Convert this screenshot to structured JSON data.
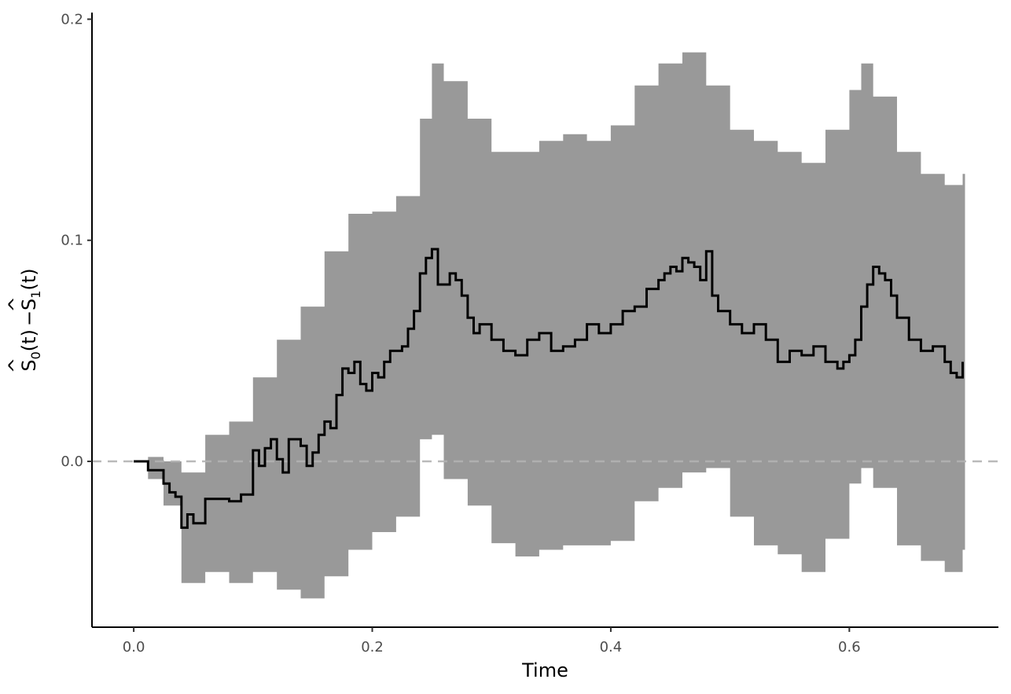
{
  "chart_data": {
    "type": "area",
    "title": "",
    "xlabel": "Time",
    "ylabel": {
      "base": "S",
      "hat": "^",
      "sub0": "0",
      "sub1": "1",
      "t": "(t)",
      "minus": "−"
    },
    "xlim": [
      -0.035,
      0.725
    ],
    "ylim": [
      -0.075,
      0.203
    ],
    "x_ticks": [
      0.0,
      0.2,
      0.4,
      0.6
    ],
    "x_tick_labels": [
      "0.0",
      "0.2",
      "0.4",
      "0.6"
    ],
    "y_ticks": [
      0.0,
      0.1,
      0.2
    ],
    "y_tick_labels": [
      "0.0",
      "0.1",
      "0.2"
    ],
    "reference_line": {
      "y": 0,
      "style": "dashed",
      "color": "#b3b3b3"
    },
    "grid": false,
    "legend": "none",
    "colors": {
      "band": "#999999",
      "line": "#000000",
      "axis": "#000000"
    },
    "series": [
      {
        "role": "confidence band",
        "x": [
          0.0,
          0.012,
          0.025,
          0.04,
          0.06,
          0.08,
          0.1,
          0.12,
          0.14,
          0.16,
          0.18,
          0.2,
          0.22,
          0.24,
          0.25,
          0.26,
          0.28,
          0.3,
          0.32,
          0.34,
          0.36,
          0.38,
          0.4,
          0.42,
          0.44,
          0.46,
          0.48,
          0.5,
          0.52,
          0.54,
          0.56,
          0.58,
          0.6,
          0.61,
          0.62,
          0.64,
          0.66,
          0.68,
          0.695
        ],
        "upper": [
          0.0,
          0.002,
          0.0,
          -0.005,
          0.012,
          0.018,
          0.038,
          0.055,
          0.07,
          0.095,
          0.112,
          0.113,
          0.12,
          0.155,
          0.18,
          0.172,
          0.155,
          0.14,
          0.14,
          0.145,
          0.148,
          0.145,
          0.152,
          0.17,
          0.18,
          0.185,
          0.17,
          0.15,
          0.145,
          0.14,
          0.135,
          0.15,
          0.168,
          0.18,
          0.165,
          0.14,
          0.13,
          0.125,
          0.13
        ],
        "lower": [
          0.0,
          -0.008,
          -0.02,
          -0.055,
          -0.05,
          -0.055,
          -0.05,
          -0.058,
          -0.062,
          -0.052,
          -0.04,
          -0.032,
          -0.025,
          0.01,
          0.012,
          -0.008,
          -0.02,
          -0.037,
          -0.043,
          -0.04,
          -0.038,
          -0.038,
          -0.036,
          -0.018,
          -0.012,
          -0.005,
          -0.003,
          -0.025,
          -0.038,
          -0.042,
          -0.05,
          -0.035,
          -0.01,
          -0.003,
          -0.012,
          -0.038,
          -0.045,
          -0.05,
          -0.04
        ]
      },
      {
        "role": "estimate",
        "x": [
          0.0,
          0.012,
          0.018,
          0.025,
          0.03,
          0.035,
          0.04,
          0.045,
          0.05,
          0.06,
          0.07,
          0.08,
          0.09,
          0.1,
          0.105,
          0.11,
          0.115,
          0.12,
          0.125,
          0.13,
          0.14,
          0.145,
          0.15,
          0.155,
          0.16,
          0.165,
          0.17,
          0.175,
          0.18,
          0.185,
          0.19,
          0.195,
          0.2,
          0.205,
          0.21,
          0.215,
          0.22,
          0.225,
          0.23,
          0.235,
          0.24,
          0.245,
          0.25,
          0.255,
          0.26,
          0.265,
          0.27,
          0.275,
          0.28,
          0.285,
          0.29,
          0.3,
          0.31,
          0.32,
          0.33,
          0.34,
          0.35,
          0.36,
          0.37,
          0.38,
          0.39,
          0.4,
          0.41,
          0.42,
          0.43,
          0.44,
          0.445,
          0.45,
          0.455,
          0.46,
          0.465,
          0.47,
          0.475,
          0.48,
          0.485,
          0.49,
          0.5,
          0.51,
          0.52,
          0.53,
          0.54,
          0.55,
          0.56,
          0.57,
          0.58,
          0.59,
          0.595,
          0.6,
          0.605,
          0.61,
          0.615,
          0.62,
          0.625,
          0.63,
          0.635,
          0.64,
          0.65,
          0.66,
          0.67,
          0.68,
          0.685,
          0.69,
          0.695
        ],
        "y": [
          0.0,
          -0.004,
          -0.004,
          -0.01,
          -0.014,
          -0.016,
          -0.03,
          -0.024,
          -0.028,
          -0.017,
          -0.017,
          -0.018,
          -0.015,
          0.005,
          -0.002,
          0.006,
          0.01,
          0.001,
          -0.005,
          0.01,
          0.007,
          -0.002,
          0.004,
          0.012,
          0.018,
          0.015,
          0.03,
          0.042,
          0.04,
          0.045,
          0.035,
          0.032,
          0.04,
          0.038,
          0.045,
          0.05,
          0.05,
          0.052,
          0.06,
          0.068,
          0.085,
          0.092,
          0.096,
          0.08,
          0.08,
          0.085,
          0.082,
          0.075,
          0.065,
          0.058,
          0.062,
          0.055,
          0.05,
          0.048,
          0.055,
          0.058,
          0.05,
          0.052,
          0.055,
          0.062,
          0.058,
          0.062,
          0.068,
          0.07,
          0.078,
          0.082,
          0.085,
          0.088,
          0.086,
          0.092,
          0.09,
          0.088,
          0.082,
          0.095,
          0.075,
          0.068,
          0.062,
          0.058,
          0.062,
          0.055,
          0.045,
          0.05,
          0.048,
          0.052,
          0.045,
          0.042,
          0.045,
          0.048,
          0.055,
          0.07,
          0.08,
          0.088,
          0.085,
          0.082,
          0.075,
          0.065,
          0.055,
          0.05,
          0.052,
          0.045,
          0.04,
          0.038,
          0.045
        ]
      }
    ]
  }
}
